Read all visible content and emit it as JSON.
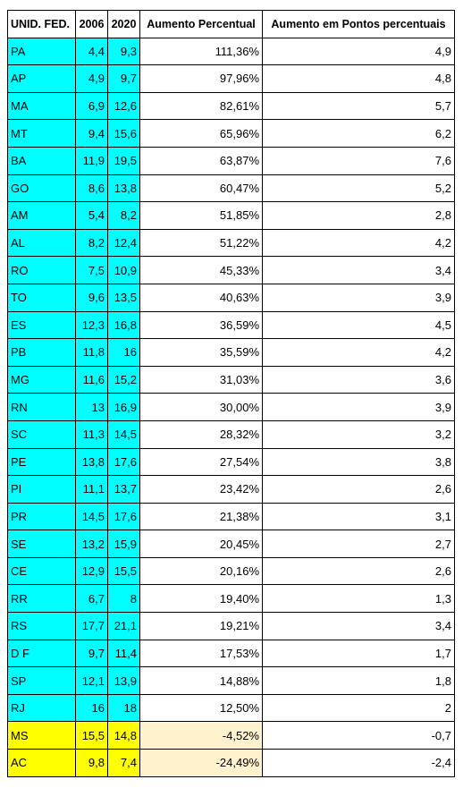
{
  "headers": [
    "UNID. FED.",
    "2006",
    "2020",
    "Aumento Percentual",
    "Aumento em Pontos percentuais"
  ],
  "colors": {
    "cyan": "#00ffff",
    "yellow": "#ffff00",
    "light_orange": "#fff2cc"
  },
  "rows": [
    {
      "uf": "PA",
      "y2006": "4,4",
      "y2020": "9,3",
      "pct": "111,36%",
      "pp": "4,9",
      "highlight": "cyan"
    },
    {
      "uf": "AP",
      "y2006": "4,9",
      "y2020": "9,7",
      "pct": "97,96%",
      "pp": "4,8",
      "highlight": "cyan"
    },
    {
      "uf": "MA",
      "y2006": "6,9",
      "y2020": "12,6",
      "pct": "82,61%",
      "pp": "5,7",
      "highlight": "cyan"
    },
    {
      "uf": "MT",
      "y2006": "9,4",
      "y2020": "15,6",
      "pct": "65,96%",
      "pp": "6,2",
      "highlight": "cyan"
    },
    {
      "uf": "BA",
      "y2006": "11,9",
      "y2020": "19,5",
      "pct": "63,87%",
      "pp": "7,6",
      "highlight": "cyan"
    },
    {
      "uf": "GO",
      "y2006": "8,6",
      "y2020": "13,8",
      "pct": "60,47%",
      "pp": "5,2",
      "highlight": "cyan"
    },
    {
      "uf": "AM",
      "y2006": "5,4",
      "y2020": "8,2",
      "pct": "51,85%",
      "pp": "2,8",
      "highlight": "cyan"
    },
    {
      "uf": "AL",
      "y2006": "8,2",
      "y2020": "12,4",
      "pct": "51,22%",
      "pp": "4,2",
      "highlight": "cyan"
    },
    {
      "uf": "RO",
      "y2006": "7,5",
      "y2020": "10,9",
      "pct": "45,33%",
      "pp": "3,4",
      "highlight": "cyan"
    },
    {
      "uf": "TO",
      "y2006": "9,6",
      "y2020": "13,5",
      "pct": "40,63%",
      "pp": "3,9",
      "highlight": "cyan"
    },
    {
      "uf": "ES",
      "y2006": "12,3",
      "y2020": "16,8",
      "pct": "36,59%",
      "pp": "4,5",
      "highlight": "cyan"
    },
    {
      "uf": "PB",
      "y2006": "11,8",
      "y2020": "16",
      "pct": "35,59%",
      "pp": "4,2",
      "highlight": "cyan"
    },
    {
      "uf": "MG",
      "y2006": "11,6",
      "y2020": "15,2",
      "pct": "31,03%",
      "pp": "3,6",
      "highlight": "cyan"
    },
    {
      "uf": "RN",
      "y2006": "13",
      "y2020": "16,9",
      "pct": "30,00%",
      "pp": "3,9",
      "highlight": "cyan"
    },
    {
      "uf": "SC",
      "y2006": "11,3",
      "y2020": "14,5",
      "pct": "28,32%",
      "pp": "3,2",
      "highlight": "cyan"
    },
    {
      "uf": "PE",
      "y2006": "13,8",
      "y2020": "17,6",
      "pct": "27,54%",
      "pp": "3,8",
      "highlight": "cyan"
    },
    {
      "uf": "PI",
      "y2006": "11,1",
      "y2020": "13,7",
      "pct": "23,42%",
      "pp": "2,6",
      "highlight": "cyan"
    },
    {
      "uf": "PR",
      "y2006": "14,5",
      "y2020": "17,6",
      "pct": "21,38%",
      "pp": "3,1",
      "highlight": "cyan"
    },
    {
      "uf": "SE",
      "y2006": "13,2",
      "y2020": "15,9",
      "pct": "20,45%",
      "pp": "2,7",
      "highlight": "cyan"
    },
    {
      "uf": "CE",
      "y2006": "12,9",
      "y2020": "15,5",
      "pct": "20,16%",
      "pp": "2,6",
      "highlight": "cyan"
    },
    {
      "uf": "RR",
      "y2006": "6,7",
      "y2020": "8",
      "pct": "19,40%",
      "pp": "1,3",
      "highlight": "cyan"
    },
    {
      "uf": "RS",
      "y2006": "17,7",
      "y2020": "21,1",
      "pct": "19,21%",
      "pp": "3,4",
      "highlight": "cyan"
    },
    {
      "uf": "D F",
      "y2006": "9,7",
      "y2020": "11,4",
      "pct": "17,53%",
      "pp": "1,7",
      "highlight": "cyan"
    },
    {
      "uf": "SP",
      "y2006": "12,1",
      "y2020": "13,9",
      "pct": "14,88%",
      "pp": "1,8",
      "highlight": "cyan"
    },
    {
      "uf": "RJ",
      "y2006": "16",
      "y2020": "18",
      "pct": "12,50%",
      "pp": "2",
      "highlight": "cyan"
    },
    {
      "uf": "MS",
      "y2006": "15,5",
      "y2020": "14,8",
      "pct": "-4,52%",
      "pp": "-0,7",
      "highlight": "yellow"
    },
    {
      "uf": "AC",
      "y2006": "9,8",
      "y2020": "7,4",
      "pct": "-24,49%",
      "pp": "-2,4",
      "highlight": "yellow"
    }
  ]
}
